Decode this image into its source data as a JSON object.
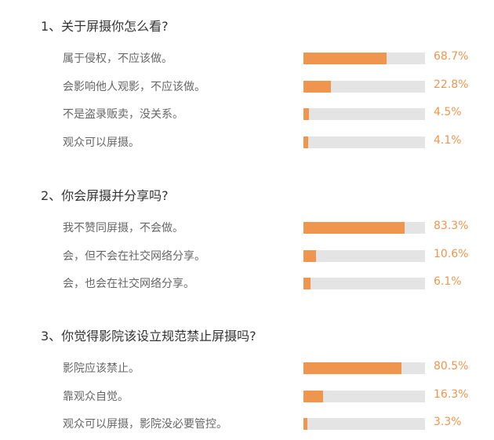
{
  "colors": {
    "accent": "#f0954d",
    "track": "#e4e4e4",
    "title": "#333333",
    "label": "#666666"
  },
  "chart_data": [
    {
      "type": "bar",
      "title": "1、关于屏摄你怎么看?",
      "categories": [
        "属于侵权，不应该做。",
        "会影响他人观影，不应该做。",
        "不是盗录贩卖，没关系。",
        "观众可以屏摄。"
      ],
      "values": [
        68.7,
        22.8,
        4.5,
        4.1
      ],
      "value_labels": [
        "68.7%",
        "22.8%",
        "4.5%",
        "4.1%"
      ],
      "ylim": [
        0,
        100
      ],
      "grid": false
    },
    {
      "type": "bar",
      "title": "2、你会屏摄并分享吗?",
      "categories": [
        "我不赞同屏摄，不会做。",
        "会，但不会在社交网络分享。",
        "会，也会在社交网络分享。"
      ],
      "values": [
        83.3,
        10.6,
        6.1
      ],
      "value_labels": [
        "83.3%",
        "10.6%",
        "6.1%"
      ],
      "ylim": [
        0,
        100
      ],
      "grid": false
    },
    {
      "type": "bar",
      "title": "3、你觉得影院该设立规范禁止屏摄吗?",
      "categories": [
        "影院应该禁止。",
        "靠观众自觉。",
        "观众可以屏摄，影院没必要管控。"
      ],
      "values": [
        80.5,
        16.3,
        3.3
      ],
      "value_labels": [
        "80.5%",
        "16.3%",
        "3.3%"
      ],
      "ylim": [
        0,
        100
      ],
      "grid": false
    }
  ]
}
